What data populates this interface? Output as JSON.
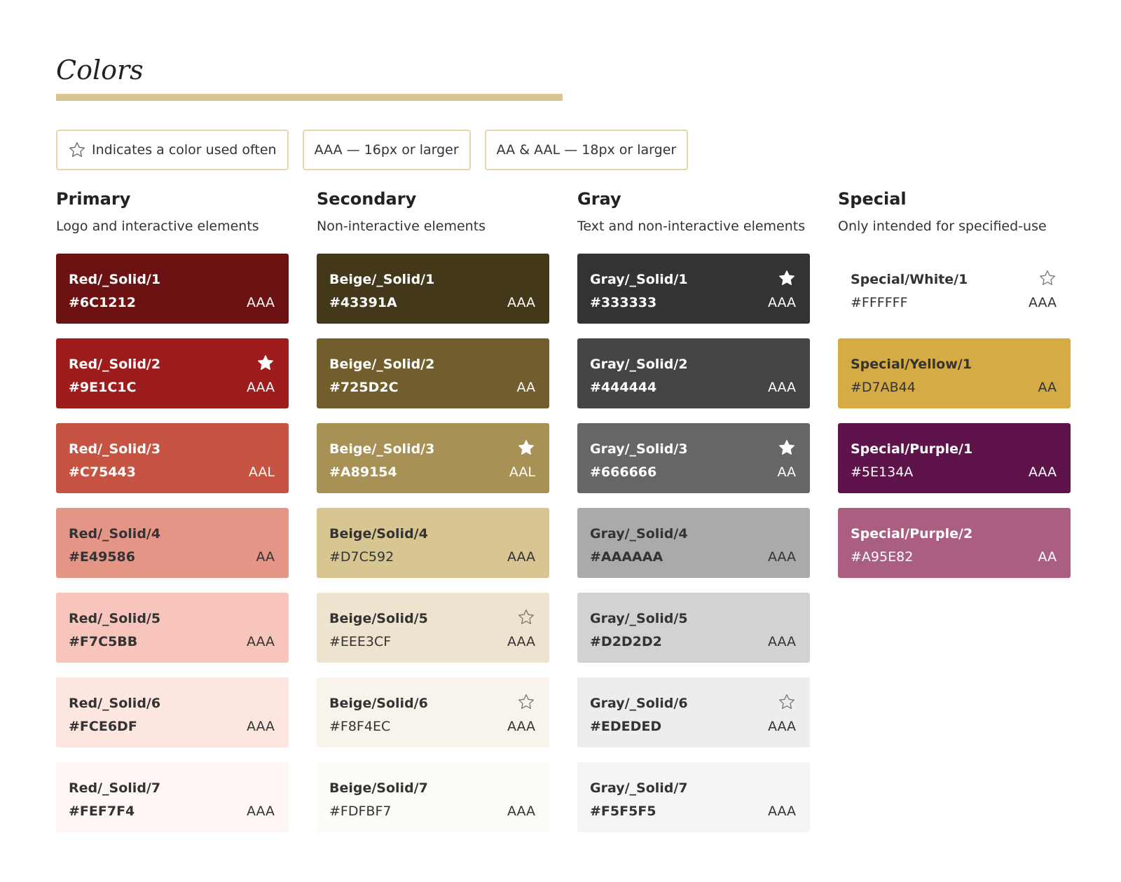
{
  "page": {
    "title": "Colors",
    "accent_color": "#D7C592"
  },
  "legend": [
    {
      "label": "Indicates a color used often",
      "icon": "star-outline-icon"
    },
    {
      "label": "AAA — 16px or larger"
    },
    {
      "label": "AA & AAL — 18px or larger"
    }
  ],
  "columns": [
    {
      "title": "Primary",
      "description": "Logo and interactive elements",
      "swatches": [
        {
          "name": "Red/_Solid/1",
          "hex": "#6C1212",
          "rating": "AAA",
          "star": "none",
          "text_color": "#FFFFFF",
          "hex_bold": true
        },
        {
          "name": "Red/_Solid/2",
          "hex": "#9E1C1C",
          "rating": "AAA",
          "star": "filled",
          "text_color": "#FFFFFF",
          "hex_bold": true
        },
        {
          "name": "Red/_Solid/3",
          "hex": "#C75443",
          "rating": "AAL",
          "star": "none",
          "text_color": "#FFFFFF",
          "hex_bold": true
        },
        {
          "name": "Red/_Solid/4",
          "hex": "#E49586",
          "rating": "AA",
          "star": "none",
          "text_color": "#333333",
          "hex_bold": true
        },
        {
          "name": "Red/_Solid/5",
          "hex": "#F7C5BB",
          "rating": "AAA",
          "star": "none",
          "text_color": "#333333",
          "hex_bold": true
        },
        {
          "name": "Red/_Solid/6",
          "hex": "#FCE6DF",
          "rating": "AAA",
          "star": "none",
          "text_color": "#333333",
          "hex_bold": true
        },
        {
          "name": "Red/_Solid/7",
          "hex": "#FEF7F4",
          "rating": "AAA",
          "star": "none",
          "text_color": "#333333",
          "hex_bold": true
        }
      ]
    },
    {
      "title": "Secondary",
      "description": "Non-interactive elements",
      "swatches": [
        {
          "name": "Beige/_Solid/1",
          "hex": "#43391A",
          "rating": "AAA",
          "star": "none",
          "text_color": "#FFFFFF",
          "hex_bold": true
        },
        {
          "name": "Beige/_Solid/2",
          "hex": "#725D2C",
          "rating": "AA",
          "star": "none",
          "text_color": "#FFFFFF",
          "hex_bold": true
        },
        {
          "name": "Beige/_Solid/3",
          "hex": "#A89154",
          "rating": "AAL",
          "star": "filled",
          "text_color": "#FFFFFF",
          "hex_bold": true
        },
        {
          "name": "Beige/Solid/4",
          "hex": "#D7C592",
          "rating": "AAA",
          "star": "none",
          "text_color": "#333333",
          "hex_bold": false
        },
        {
          "name": "Beige/Solid/5",
          "hex": "#EEE3CF",
          "rating": "AAA",
          "star": "outline",
          "text_color": "#333333",
          "hex_bold": false
        },
        {
          "name": "Beige/Solid/6",
          "hex": "#F8F4EC",
          "rating": "AAA",
          "star": "outline",
          "text_color": "#333333",
          "hex_bold": false
        },
        {
          "name": "Beige/Solid/7",
          "hex": "#FDFBF7",
          "rating": "AAA",
          "star": "none",
          "text_color": "#333333",
          "hex_bold": false
        }
      ]
    },
    {
      "title": "Gray",
      "description": "Text and non-interactive elements",
      "swatches": [
        {
          "name": "Gray/_Solid/1",
          "hex": "#333333",
          "rating": "AAA",
          "star": "filled",
          "text_color": "#FFFFFF",
          "hex_bold": true
        },
        {
          "name": "Gray/_Solid/2",
          "hex": "#444444",
          "rating": "AAA",
          "star": "none",
          "text_color": "#FFFFFF",
          "hex_bold": true
        },
        {
          "name": "Gray/_Solid/3",
          "hex": "#666666",
          "rating": "AA",
          "star": "filled",
          "text_color": "#FFFFFF",
          "hex_bold": true
        },
        {
          "name": "Gray/_Solid/4",
          "hex": "#AAAAAA",
          "rating": "AAA",
          "star": "none",
          "text_color": "#333333",
          "hex_bold": true
        },
        {
          "name": "Gray/_Solid/5",
          "hex": "#D2D2D2",
          "rating": "AAA",
          "star": "none",
          "text_color": "#333333",
          "hex_bold": true
        },
        {
          "name": "Gray/_Solid/6",
          "hex": "#EDEDED",
          "rating": "AAA",
          "star": "outline",
          "text_color": "#333333",
          "hex_bold": true
        },
        {
          "name": "Gray/_Solid/7",
          "hex": "#F5F5F5",
          "rating": "AAA",
          "star": "none",
          "text_color": "#333333",
          "hex_bold": true
        }
      ]
    },
    {
      "title": "Special",
      "description": "Only intended for specified-use",
      "swatches": [
        {
          "name": "Special/White/1",
          "hex": "#FFFFFF",
          "rating": "AAA",
          "star": "outline",
          "text_color": "#333333",
          "hex_bold": false
        },
        {
          "name": "Special/Yellow/1",
          "hex": "#D7AB44",
          "rating": "AA",
          "star": "none",
          "text_color": "#333333",
          "hex_bold": false
        },
        {
          "name": "Special/Purple/1",
          "hex": "#5E134A",
          "rating": "AAA",
          "star": "none",
          "text_color": "#FFFFFF",
          "hex_bold": false
        },
        {
          "name": "Special/Purple/2",
          "hex": "#A95E82",
          "rating": "AA",
          "star": "none",
          "text_color": "#FFFFFF",
          "hex_bold": false
        }
      ]
    }
  ]
}
